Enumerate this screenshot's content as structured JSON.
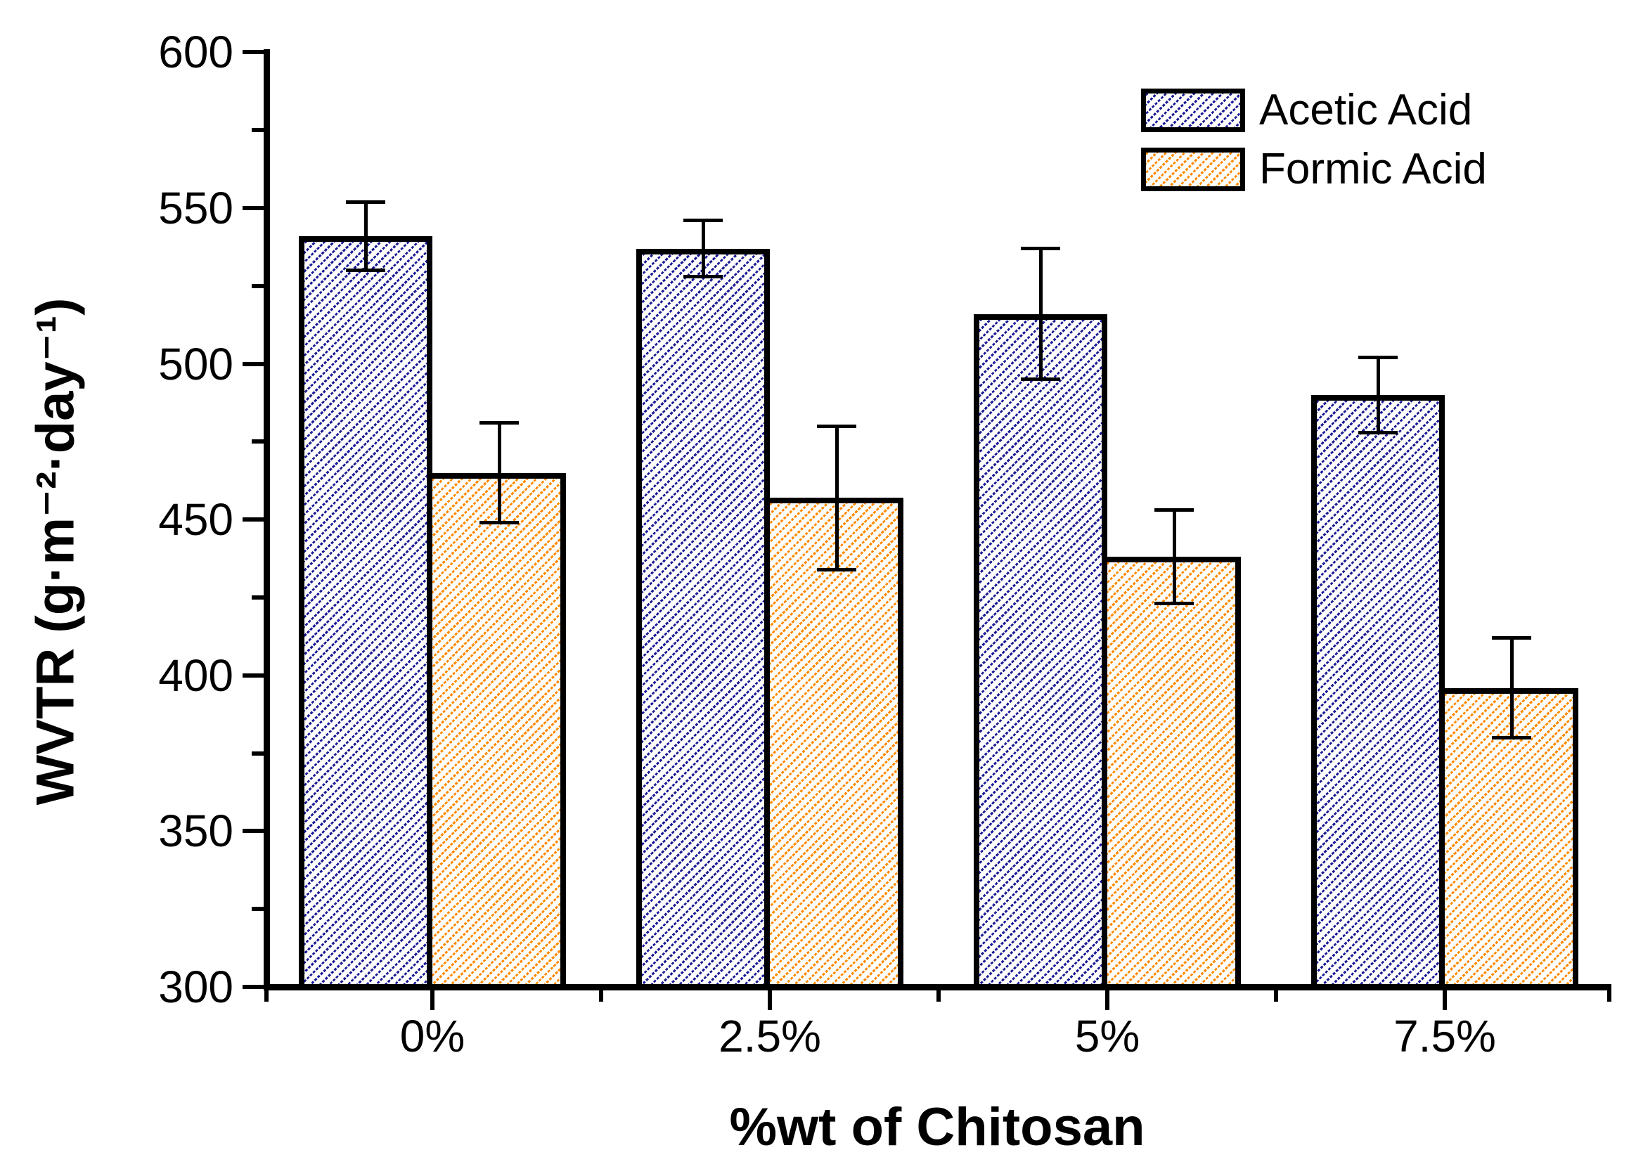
{
  "figure": {
    "background": "#ffffff",
    "axis_color": "#000000"
  },
  "legend": {
    "position": "upper right",
    "items": [
      {
        "label": "Acetic Acid",
        "series": "acetic",
        "swatch": "blue-diagonal-hatch"
      },
      {
        "label": "Formic Acid",
        "series": "formic",
        "swatch": "orange-diagonal-hatch"
      }
    ]
  },
  "chart_data": {
    "type": "bar",
    "title": "",
    "xlabel": "%wt of Chitosan",
    "ylabel": "WVTR (g·m⁻²·day⁻¹)",
    "categories": [
      "0%",
      "2.5%",
      "5%",
      "7.5%"
    ],
    "series": [
      {
        "name": "Acetic Acid",
        "values": [
          541,
          537,
          516,
          490
        ],
        "errors": [
          11,
          9,
          21,
          12
        ],
        "color": "#1c1c96",
        "hatch": "diagonal"
      },
      {
        "name": "Formic Acid",
        "values": [
          465,
          457,
          438,
          396
        ],
        "errors": [
          16,
          23,
          15,
          16
        ],
        "color": "#ff8a00",
        "hatch": "diagonal"
      }
    ],
    "ylim": [
      300,
      600
    ],
    "y_major_step": 50,
    "y_minor_step": 25,
    "grid": false,
    "error_bars": true,
    "legend_position": "upper right"
  }
}
